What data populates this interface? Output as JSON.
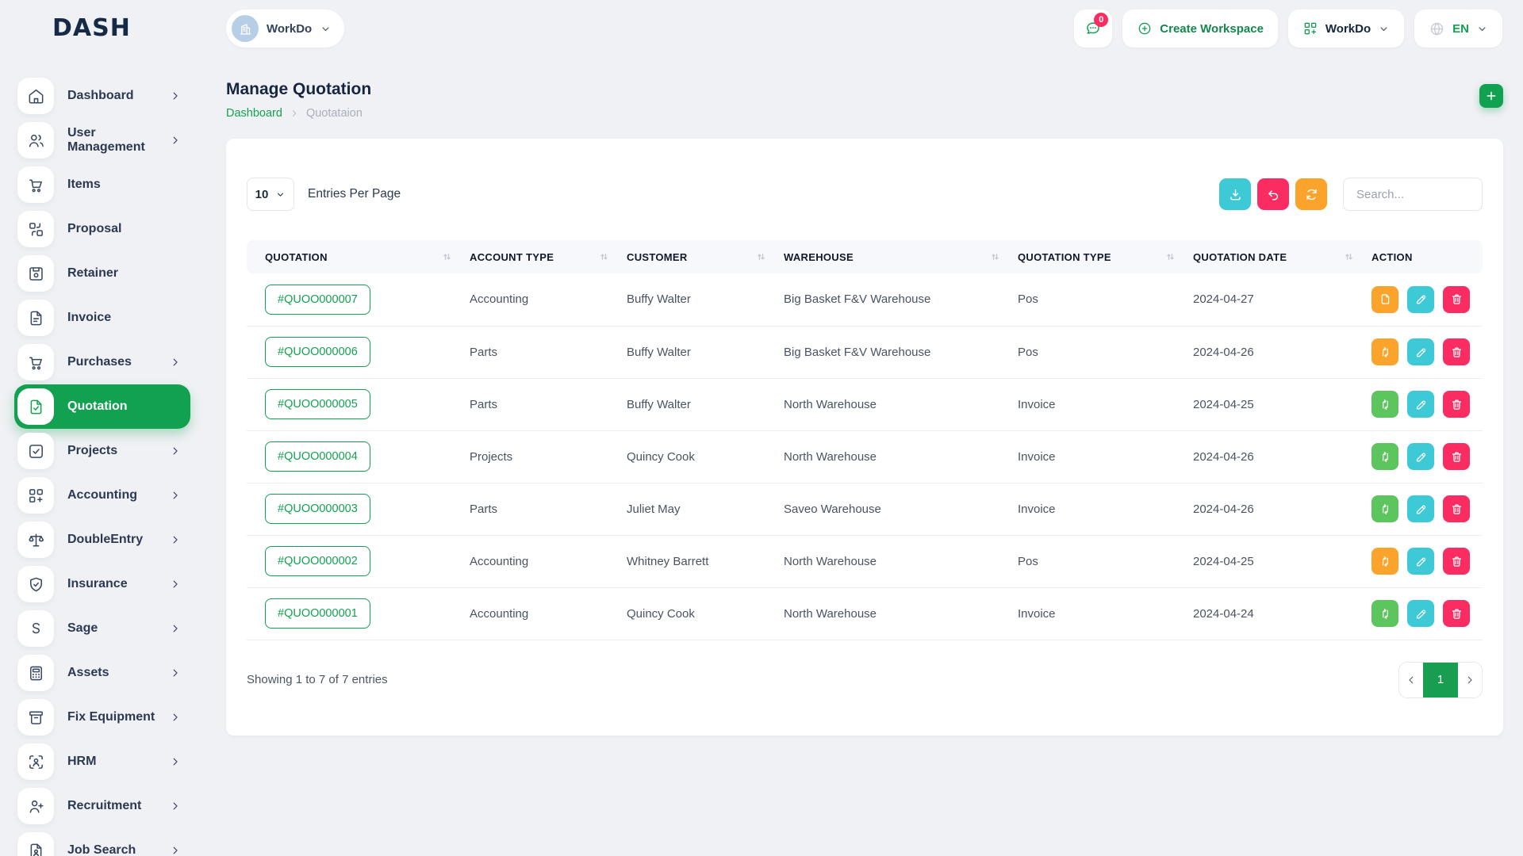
{
  "brand": {
    "logo_text": "DASH"
  },
  "header": {
    "workspace_selector": {
      "label": "WorkDo",
      "icon": "building"
    },
    "messages": {
      "icon": "chat",
      "badge": "0"
    },
    "create_workspace": {
      "label": "Create Workspace",
      "icon": "plus-circle"
    },
    "workdo_menu": {
      "label": "WorkDo",
      "icon": "grid-plus"
    },
    "language": {
      "code": "EN",
      "icon": "globe"
    }
  },
  "sidebar": {
    "items": [
      {
        "label": "Dashboard",
        "icon": "home",
        "has_submenu": true,
        "active": false
      },
      {
        "label": "User Management",
        "icon": "users",
        "has_submenu": true,
        "active": false
      },
      {
        "label": "Items",
        "icon": "cart",
        "has_submenu": false,
        "active": false
      },
      {
        "label": "Proposal",
        "icon": "transfer-squares",
        "has_submenu": false,
        "active": false
      },
      {
        "label": "Retainer",
        "icon": "floppy",
        "has_submenu": false,
        "active": false
      },
      {
        "label": "Invoice",
        "icon": "file-text",
        "has_submenu": false,
        "active": false
      },
      {
        "label": "Purchases",
        "icon": "cart",
        "has_submenu": true,
        "active": false
      },
      {
        "label": "Quotation",
        "icon": "file-check",
        "has_submenu": false,
        "active": true
      },
      {
        "label": "Projects",
        "icon": "check-square",
        "has_submenu": true,
        "active": false
      },
      {
        "label": "Accounting",
        "icon": "grid-plus",
        "has_submenu": true,
        "active": false
      },
      {
        "label": "DoubleEntry",
        "icon": "scale",
        "has_submenu": true,
        "active": false
      },
      {
        "label": "Insurance",
        "icon": "shield-check",
        "has_submenu": true,
        "active": false
      },
      {
        "label": "Sage",
        "icon": "sage-s",
        "has_submenu": true,
        "active": false
      },
      {
        "label": "Assets",
        "icon": "calculator",
        "has_submenu": true,
        "active": false
      },
      {
        "label": "Fix Equipment",
        "icon": "archive-box",
        "has_submenu": true,
        "active": false
      },
      {
        "label": "HRM",
        "icon": "person-focus",
        "has_submenu": true,
        "active": false
      },
      {
        "label": "Recruitment",
        "icon": "person-plus",
        "has_submenu": true,
        "active": false
      },
      {
        "label": "Job Search",
        "icon": "file-person",
        "has_submenu": true,
        "active": false
      }
    ]
  },
  "page": {
    "title": "Manage Quotation",
    "breadcrumb": [
      {
        "label": "Dashboard",
        "link": true
      },
      {
        "label": "Quotataion",
        "link": false
      }
    ]
  },
  "toolbar": {
    "entries_select_value": "10",
    "entries_label": "Entries Per Page",
    "buttons": [
      {
        "name": "export",
        "icon": "download",
        "color": "#3EC9D6"
      },
      {
        "name": "undo",
        "icon": "undo",
        "color": "#FB2C62"
      },
      {
        "name": "refresh",
        "icon": "refresh",
        "color": "#FBA32B"
      }
    ],
    "search_placeholder": "Search..."
  },
  "table": {
    "columns": [
      "QUOTATION",
      "ACCOUNT TYPE",
      "CUSTOMER",
      "WAREHOUSE",
      "QUOTATION TYPE",
      "QUOTATION DATE",
      "ACTION"
    ],
    "sortable_column_count": 6,
    "rows": [
      {
        "quotation": "#QUOO000007",
        "account_type": "Accounting",
        "customer": "Buffy Walter",
        "warehouse": "Big Basket F&V Warehouse",
        "quotation_type": "Pos",
        "quotation_date": "2024-04-27",
        "convert_icon": "file",
        "convert_color": "orange"
      },
      {
        "quotation": "#QUOO000006",
        "account_type": "Parts",
        "customer": "Buffy Walter",
        "warehouse": "Big Basket F&V Warehouse",
        "quotation_type": "Pos",
        "quotation_date": "2024-04-26",
        "convert_icon": "swap",
        "convert_color": "orange"
      },
      {
        "quotation": "#QUOO000005",
        "account_type": "Parts",
        "customer": "Buffy Walter",
        "warehouse": "North Warehouse",
        "quotation_type": "Invoice",
        "quotation_date": "2024-04-25",
        "convert_icon": "swap",
        "convert_color": "green"
      },
      {
        "quotation": "#QUOO000004",
        "account_type": "Projects",
        "customer": "Quincy Cook",
        "warehouse": "North Warehouse",
        "quotation_type": "Invoice",
        "quotation_date": "2024-04-26",
        "convert_icon": "swap",
        "convert_color": "green"
      },
      {
        "quotation": "#QUOO000003",
        "account_type": "Parts",
        "customer": "Juliet May",
        "warehouse": "Saveo Warehouse",
        "quotation_type": "Invoice",
        "quotation_date": "2024-04-26",
        "convert_icon": "swap",
        "convert_color": "green"
      },
      {
        "quotation": "#QUOO000002",
        "account_type": "Accounting",
        "customer": "Whitney Barrett",
        "warehouse": "North Warehouse",
        "quotation_type": "Pos",
        "quotation_date": "2024-04-25",
        "convert_icon": "swap",
        "convert_color": "orange"
      },
      {
        "quotation": "#QUOO000001",
        "account_type": "Accounting",
        "customer": "Quincy Cook",
        "warehouse": "North Warehouse",
        "quotation_type": "Invoice",
        "quotation_date": "2024-04-24",
        "convert_icon": "swap",
        "convert_color": "green"
      }
    ]
  },
  "footer": {
    "showing_text": "Showing 1 to 7 of 7 entries",
    "pagination": {
      "current_page": "1"
    }
  },
  "colors": {
    "primary_green": "#12A150",
    "convert_green": "#5CC55E",
    "cyan": "#3EC9D6",
    "pink": "#FB2C62",
    "orange": "#FBA32B",
    "body_bg": "#F0F1F5",
    "card_bg": "#FFFFFF"
  }
}
